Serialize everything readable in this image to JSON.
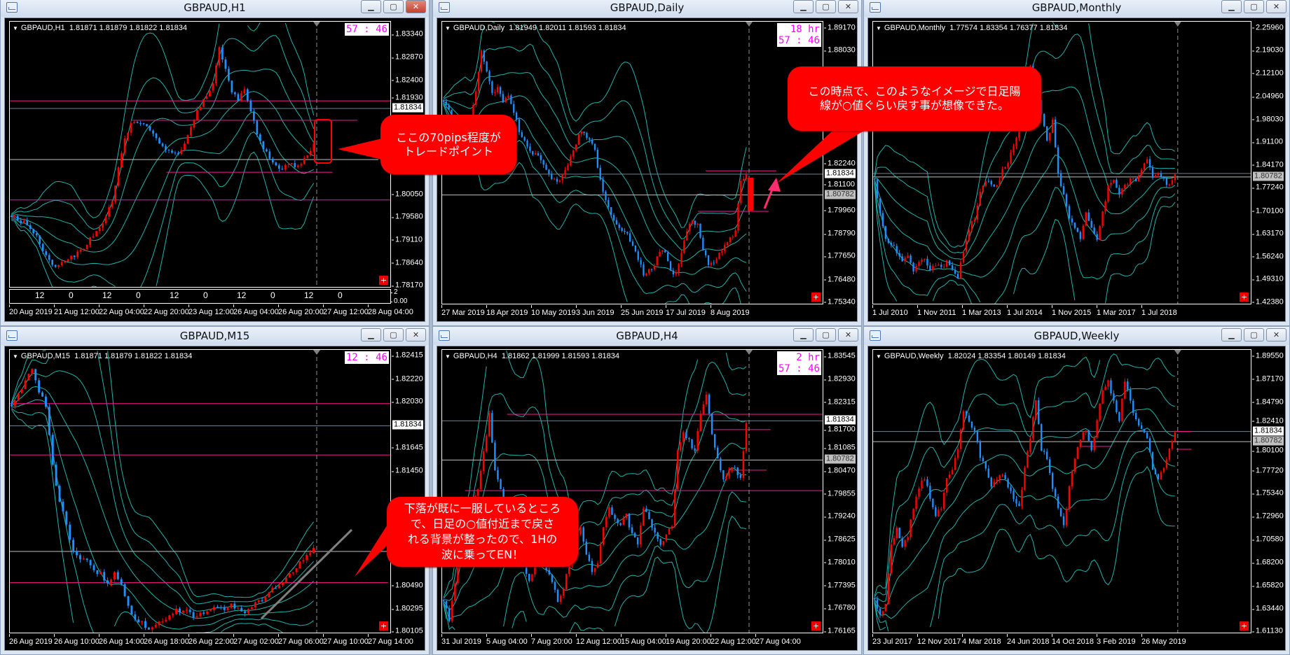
{
  "windows": [
    {
      "title": "GBPAUD,H1",
      "symbol": "GBPAUD,H1",
      "ohlc": "1.81871 1.81879 1.81822 1.81834",
      "countdown": [
        "57 : 46"
      ],
      "price_labels": [
        "1.83340",
        "1.82870",
        "1.82400",
        "1.81930",
        "1.80050",
        "1.79580",
        "1.79110",
        "1.78640",
        "1.78170"
      ],
      "markers": [
        {
          "text": "1.81834",
          "style": "current"
        }
      ],
      "time_labels": [
        "20 Aug 2019",
        "21 Aug 12:00",
        "22 Aug 04:00",
        "22 Aug 20:00",
        "23 Aug 12:00",
        "26 Aug 04:00",
        "26 Aug 20:00",
        "27 Aug 12:00",
        "28 Aug 04:00"
      ],
      "sub_labels": [
        "12",
        "0",
        "12",
        "0",
        "12",
        "0",
        "12",
        "0",
        "12",
        "0"
      ],
      "sub_axis": [
        "2",
        "0.00"
      ],
      "y_range": [
        1.7813,
        1.8362
      ],
      "closes": [
        1.796,
        1.7955,
        1.795,
        1.7935,
        1.792,
        1.789,
        1.787,
        1.786,
        1.7865,
        1.787,
        1.788,
        1.789,
        1.7905,
        1.792,
        1.7935,
        1.796,
        1.799,
        1.806,
        1.812,
        1.815,
        1.8155,
        1.815,
        1.814,
        1.8125,
        1.8105,
        1.8095,
        1.809,
        1.81,
        1.813,
        1.816,
        1.819,
        1.821,
        1.8235,
        1.831,
        1.8265,
        1.8215,
        1.82,
        1.822,
        1.818,
        1.813,
        1.81,
        1.808,
        1.8065,
        1.806,
        1.807,
        1.8065,
        1.8072,
        1.809,
        1.811
      ],
      "hlines": [
        {
          "price": 1.8199,
          "color": "#ff1493"
        },
        {
          "price": 1.81834,
          "color": "#708090"
        },
        {
          "price": 1.8159,
          "color": "#ff1493"
        },
        {
          "price": 1.80782,
          "color": "#c0c0c0"
        },
        {
          "price": 1.8052,
          "color": "#ff1493"
        },
        {
          "price": 1.7995,
          "color": "#ff1493"
        }
      ]
    },
    {
      "title": "GBPAUD,Daily",
      "symbol": "GBPAUD,Daily",
      "ohlc": "1.81949 1.82011 1.81593 1.81834",
      "countdown": [
        "18 hr",
        "57 : 46"
      ],
      "price_labels": [
        "1.89170",
        "1.88030",
        "1.82240",
        "1.81100",
        "1.79960",
        "1.78790",
        "1.77650",
        "1.76480",
        "1.75340"
      ],
      "markers": [
        {
          "text": "1.81834",
          "style": "current"
        },
        {
          "text": "1.80782",
          "style": "previous"
        }
      ],
      "time_labels": [
        "27 Mar 2019",
        "18 Apr 2019",
        "10 May 2019",
        "3 Jun 2019",
        "25 Jun 2019",
        "17 Jul 2019",
        "8 Aug 2019"
      ],
      "y_range": [
        1.7523,
        1.8952
      ],
      "closes": [
        1.855,
        1.85,
        1.845,
        1.84,
        1.835,
        1.845,
        1.86,
        1.88,
        1.87,
        1.86,
        1.862,
        1.855,
        1.858,
        1.85,
        1.84,
        1.835,
        1.83,
        1.828,
        1.825,
        1.82,
        1.815,
        1.815,
        1.818,
        1.822,
        1.83,
        1.838,
        1.84,
        1.835,
        1.83,
        1.815,
        1.805,
        1.798,
        1.793,
        1.79,
        1.788,
        1.783,
        1.775,
        1.768,
        1.77,
        1.772,
        1.78,
        1.778,
        1.77,
        1.768,
        1.778,
        1.79,
        1.795,
        1.793,
        1.78,
        1.772,
        1.773,
        1.778,
        1.782,
        1.786,
        1.79,
        1.815,
        1.818
      ],
      "hlines": [
        {
          "price": 1.82,
          "color": "#ff1493"
        },
        {
          "price": 1.81834,
          "color": "#708090"
        },
        {
          "price": 1.80782,
          "color": "#c0c0c0"
        },
        {
          "price": 1.7996,
          "color": "#ff1493"
        }
      ]
    },
    {
      "title": "GBPAUD,Monthly",
      "symbol": "GBPAUD,Monthly",
      "ohlc": "1.77574 1.83354 1.76377 1.81834",
      "countdown": [],
      "price_labels": [
        "2.25960",
        "2.19030",
        "2.12100",
        "2.04960",
        "1.98030",
        "1.91100",
        "1.84170",
        "1.77240",
        "1.70100",
        "1.63170",
        "1.56240",
        "1.49310",
        "1.42380"
      ],
      "markers": [
        {
          "text": "1.80782",
          "style": "previous"
        }
      ],
      "time_labels": [
        "1 Jul 2010",
        "1 Nov 2011",
        "1 Mar 2013",
        "1 Jul 2014",
        "1 Nov 2015",
        "1 Mar 2017",
        "1 Jul 2018"
      ],
      "y_range": [
        1.4174,
        2.2807
      ],
      "closes": [
        1.8,
        1.7,
        1.62,
        1.6,
        1.58,
        1.55,
        1.57,
        1.52,
        1.55,
        1.56,
        1.52,
        1.54,
        1.53,
        1.55,
        1.52,
        1.5,
        1.58,
        1.65,
        1.68,
        1.76,
        1.8,
        1.79,
        1.78,
        1.83,
        1.85,
        1.9,
        1.95,
        2.05,
        2.15,
        2.1,
        2.0,
        1.92,
        1.98,
        1.82,
        1.75,
        1.68,
        1.65,
        1.62,
        1.7,
        1.65,
        1.62,
        1.7,
        1.78,
        1.8,
        1.75,
        1.78,
        1.8,
        1.79,
        1.83,
        1.86,
        1.81,
        1.82,
        1.8,
        1.78,
        1.82
      ],
      "hlines": [
        {
          "price": 1.81834,
          "color": "#708090"
        },
        {
          "price": 1.80782,
          "color": "#c0c0c0"
        }
      ]
    },
    {
      "title": "GBPAUD,M15",
      "symbol": "GBPAUD,M15",
      "ohlc": "1.81871 1.81879 1.81822 1.81834",
      "countdown": [
        "12 : 46"
      ],
      "price_labels": [
        "1.82415",
        "1.82220",
        "1.82030",
        "1.81645",
        "1.81450",
        "1.80490",
        "1.80295",
        "1.80105"
      ],
      "markers": [
        {
          "text": "1.81834",
          "style": "current"
        }
      ],
      "time_labels": [
        "26 Aug 2019",
        "26 Aug 10:00",
        "26 Aug 14:00",
        "26 Aug 18:00",
        "26 Aug 22:00",
        "27 Aug 02:00",
        "27 Aug 06:00",
        "27 Aug 10:00",
        "27 Aug 14:00"
      ],
      "y_range": [
        1.8009,
        1.8247
      ],
      "closes": [
        1.82,
        1.821,
        1.822,
        1.823,
        1.8212,
        1.82,
        1.815,
        1.812,
        1.81,
        1.808,
        1.8072,
        1.807,
        1.8062,
        1.806,
        1.8052,
        1.806,
        1.805,
        1.8032,
        1.8022,
        1.802,
        1.8012,
        1.8016,
        1.802,
        1.8025,
        1.803,
        1.8028,
        1.8026,
        1.8024,
        1.8027,
        1.803,
        1.8031,
        1.8028,
        1.8034,
        1.803,
        1.8027,
        1.8031,
        1.8036,
        1.804,
        1.8046,
        1.805,
        1.8056,
        1.8062,
        1.807,
        1.8076,
        1.808
      ],
      "hlines": [
        {
          "price": 1.8202,
          "color": "#ff1493"
        },
        {
          "price": 1.81834,
          "color": "#708090"
        },
        {
          "price": 1.8159,
          "color": "#ff1493"
        },
        {
          "price": 1.80782,
          "color": "#c0c0c0"
        },
        {
          "price": 1.8052,
          "color": "#ff1493"
        }
      ]
    },
    {
      "title": "GBPAUD,H4",
      "symbol": "GBPAUD,H4",
      "ohlc": "1.81862 1.81999 1.81593 1.81834",
      "countdown": [
        "2 hr",
        "57 : 46"
      ],
      "price_labels": [
        "1.83545",
        "1.82930",
        "1.82315",
        "1.81700",
        "1.81085",
        "1.80470",
        "1.79855",
        "1.79240",
        "1.78625",
        "1.78010",
        "1.77395",
        "1.76780",
        "1.76165"
      ],
      "markers": [
        {
          "text": "1.81834",
          "style": "current"
        },
        {
          "text": "1.80782",
          "style": "previous"
        }
      ],
      "time_labels": [
        "31 Jul 2019",
        "5 Aug 04:00",
        "7 Aug 20:00",
        "12 Aug 12:00",
        "15 Aug 04:00",
        "19 Aug 20:00",
        "22 Aug 12:00",
        "27 Aug 04:00"
      ],
      "y_range": [
        1.7611,
        1.8374
      ],
      "closes": [
        1.77,
        1.765,
        1.775,
        1.785,
        1.78,
        1.795,
        1.8,
        1.81,
        1.82,
        1.805,
        1.8,
        1.79,
        1.795,
        1.79,
        1.78,
        1.775,
        1.78,
        1.785,
        1.778,
        1.775,
        1.77,
        1.773,
        1.78,
        1.785,
        1.79,
        1.782,
        1.778,
        1.78,
        1.79,
        1.795,
        1.792,
        1.79,
        1.793,
        1.788,
        1.785,
        1.795,
        1.792,
        1.788,
        1.785,
        1.788,
        1.79,
        1.81,
        1.815,
        1.813,
        1.81,
        1.82,
        1.825,
        1.815,
        1.808,
        1.803,
        1.805,
        1.806,
        1.803,
        1.818
      ],
      "hlines": [
        {
          "price": 1.8201,
          "color": "#ff1493"
        },
        {
          "price": 1.81834,
          "color": "#708090"
        },
        {
          "price": 1.816,
          "color": "#ff1493"
        },
        {
          "price": 1.80782,
          "color": "#c0c0c0"
        },
        {
          "price": 1.8051,
          "color": "#ff1493"
        },
        {
          "price": 1.7996,
          "color": "#ff1493"
        }
      ]
    },
    {
      "title": "GBPAUD,Weekly",
      "symbol": "GBPAUD,Weekly",
      "ohlc": "1.82024 1.83354 1.80149 1.81834",
      "countdown": [],
      "price_labels": [
        "1.89550",
        "1.87170",
        "1.84790",
        "1.82410",
        "1.80100",
        "1.77720",
        "1.75340",
        "1.72960",
        "1.70580",
        "1.68200",
        "1.65820",
        "1.63440",
        "1.61130"
      ],
      "markers": [
        {
          "text": "1.81834",
          "style": "current"
        },
        {
          "text": "1.80782",
          "style": "previous"
        }
      ],
      "time_labels": [
        "23 Jul 2017",
        "12 Nov 2017",
        "4 Mar 2018",
        "24 Jun 2018",
        "14 Oct 2018",
        "3 Feb 2019",
        "26 May 2019"
      ],
      "y_range": [
        1.6092,
        1.9026
      ],
      "closes": [
        1.645,
        1.63,
        1.64,
        1.7,
        1.72,
        1.7,
        1.71,
        1.74,
        1.76,
        1.77,
        1.75,
        1.73,
        1.74,
        1.77,
        1.78,
        1.8,
        1.84,
        1.83,
        1.82,
        1.79,
        1.78,
        1.76,
        1.77,
        1.775,
        1.76,
        1.75,
        1.74,
        1.78,
        1.81,
        1.85,
        1.8,
        1.79,
        1.76,
        1.74,
        1.72,
        1.76,
        1.79,
        1.81,
        1.82,
        1.8,
        1.83,
        1.86,
        1.87,
        1.85,
        1.83,
        1.87,
        1.85,
        1.83,
        1.82,
        1.81,
        1.78,
        1.77,
        1.78,
        1.8,
        1.818
      ],
      "hlines": [
        {
          "price": 1.81834,
          "color": "#708090"
        },
        {
          "price": 1.80782,
          "color": "#c0c0c0"
        },
        {
          "price": 1.8183,
          "color": "#ff1493"
        },
        {
          "price": 1.803,
          "color": "#ff1493"
        },
        {
          "price": 1.8,
          "color": "#ff1493"
        }
      ]
    }
  ],
  "annotations": {
    "callout_h1": [
      "ここの70pips程度が",
      "トレードポイント"
    ],
    "callout_daily": [
      "この時点で、このようなイメージで日足陽",
      "線が○値ぐらい戻す事が想像できた。"
    ],
    "callout_m15": [
      "下落が既に一服しているところ",
      "で、日足の○値付近まで戻さ",
      "れる背景が整ったので、1Hの",
      "波に乗ってEN！"
    ]
  },
  "colors": {
    "up_candle": "#ff0000",
    "down_candle": "#1e90ff",
    "bands": "#20b2aa",
    "callout": "#ff0000",
    "countdown": "#ff00ff"
  },
  "window_buttons": {
    "minimize": "▁",
    "restore": "▢",
    "close": "✕"
  }
}
